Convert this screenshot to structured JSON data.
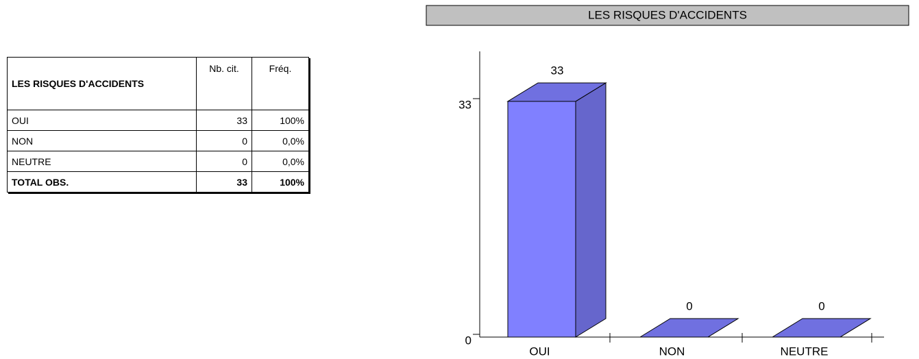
{
  "table": {
    "header": [
      "LES RISQUES D'ACCIDENTS",
      "Nb. cit.",
      "Fréq."
    ],
    "rows": [
      [
        "OUI",
        "33",
        "100%"
      ],
      [
        "NON",
        "0",
        "0,0%"
      ],
      [
        "NEUTRE",
        "0",
        "0,0%"
      ],
      [
        "TOTAL OBS.",
        "33",
        "100%"
      ]
    ]
  },
  "chart_data": {
    "type": "bar",
    "title": "LES RISQUES D'ACCIDENTS",
    "categories": [
      "OUI",
      "NON",
      "NEUTRE"
    ],
    "values": [
      33,
      0,
      0
    ],
    "color": "#8080ff",
    "ylim": [
      0,
      40
    ],
    "yticks": [
      0,
      33
    ],
    "grid": false
  }
}
